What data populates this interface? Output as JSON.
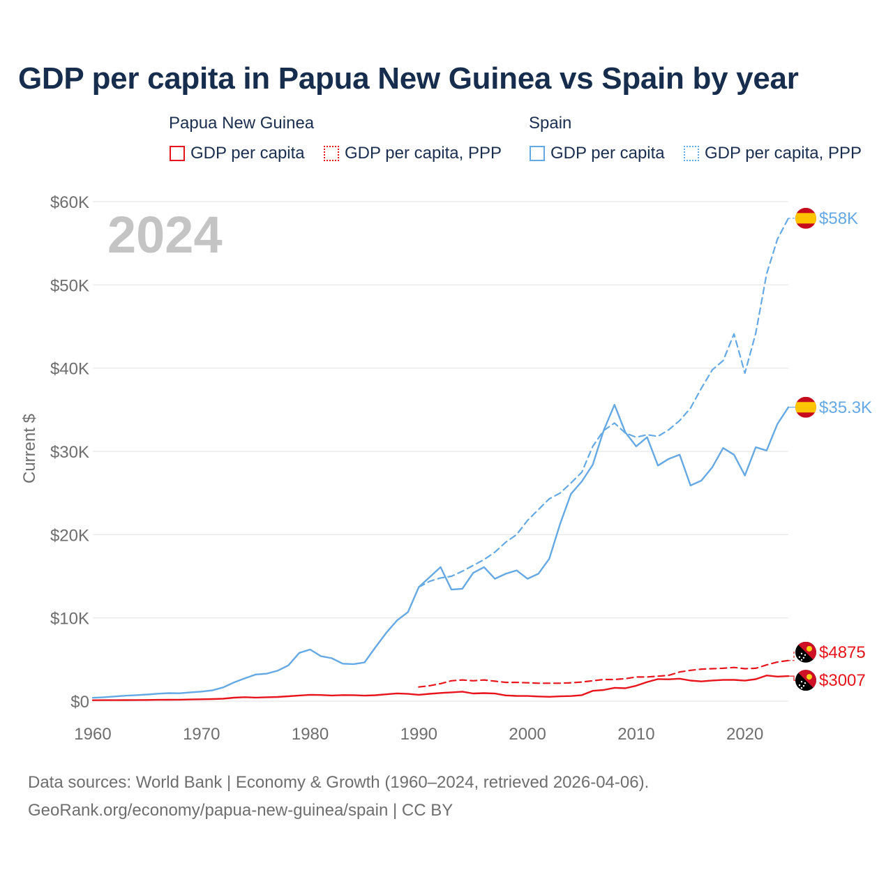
{
  "title": "GDP per capita in Papua New Guinea vs Spain by year",
  "legend": {
    "groups": [
      {
        "name": "Papua New Guinea",
        "items": [
          "GDP per capita",
          "GDP per capita, PPP"
        ]
      },
      {
        "name": "Spain",
        "items": [
          "GDP per capita",
          "GDP per capita, PPP"
        ]
      }
    ]
  },
  "year_label": "2024",
  "colors": {
    "papua_new_guinea": "#e8141c",
    "spain": "#65a9e4",
    "grid": "#e6e6e6",
    "axis_text": "#6e6e6e",
    "year_label": "#c4c4c4"
  },
  "chart_data": {
    "type": "line",
    "title": "GDP per capita in Papua New Guinea vs Spain by year",
    "xlabel": "",
    "ylabel": "Current $",
    "xlim": [
      1960,
      2024
    ],
    "ylim": [
      0,
      60000
    ],
    "x_ticks": [
      1960,
      1970,
      1980,
      1990,
      2000,
      2010,
      2020
    ],
    "y_ticks": [
      0,
      10000,
      20000,
      30000,
      40000,
      50000,
      60000
    ],
    "y_tick_labels": [
      "$0",
      "$10K",
      "$20K",
      "$30K",
      "$40K",
      "$50K",
      "$60K"
    ],
    "grid": true,
    "series": [
      {
        "name": "Spain GDP per capita",
        "country": "Spain",
        "style": "solid",
        "color": "#65a9e4",
        "x": [
          1960,
          1961,
          1962,
          1963,
          1964,
          1965,
          1966,
          1967,
          1968,
          1969,
          1970,
          1971,
          1972,
          1973,
          1974,
          1975,
          1976,
          1977,
          1978,
          1979,
          1980,
          1981,
          1982,
          1983,
          1984,
          1985,
          1986,
          1987,
          1988,
          1989,
          1990,
          1991,
          1992,
          1993,
          1994,
          1995,
          1996,
          1997,
          1998,
          1999,
          2000,
          2001,
          2002,
          2003,
          2004,
          2005,
          2006,
          2007,
          2008,
          2009,
          2010,
          2011,
          2012,
          2013,
          2014,
          2015,
          2016,
          2017,
          2018,
          2019,
          2020,
          2021,
          2022,
          2023,
          2024
        ],
        "values": [
          400,
          470,
          560,
          650,
          720,
          800,
          900,
          960,
          950,
          1060,
          1150,
          1300,
          1650,
          2250,
          2750,
          3200,
          3300,
          3650,
          4300,
          5800,
          6200,
          5400,
          5150,
          4500,
          4450,
          4650,
          6450,
          8200,
          9700,
          10700,
          13700,
          14900,
          16100,
          13400,
          13500,
          15400,
          16100,
          14700,
          15300,
          15700,
          14700,
          15300,
          17100,
          21300,
          24900,
          26400,
          28400,
          32500,
          35600,
          32300,
          30600,
          31700,
          28300,
          29100,
          29600,
          25900,
          26500,
          28100,
          30400,
          29600,
          27100,
          30500,
          30100,
          33300,
          35300
        ]
      },
      {
        "name": "Spain GDP per capita, PPP",
        "country": "Spain",
        "style": "dashed",
        "color": "#65a9e4",
        "x": [
          1990,
          1991,
          1992,
          1993,
          1994,
          1995,
          1996,
          1997,
          1998,
          1999,
          2000,
          2001,
          2002,
          2003,
          2004,
          2005,
          2006,
          2007,
          2008,
          2009,
          2010,
          2011,
          2012,
          2013,
          2014,
          2015,
          2016,
          2017,
          2018,
          2019,
          2020,
          2021,
          2022,
          2023,
          2024
        ],
        "values": [
          13700,
          14400,
          14800,
          15000,
          15600,
          16300,
          17000,
          17900,
          19100,
          20000,
          21700,
          23000,
          24300,
          25000,
          26200,
          27500,
          30600,
          32500,
          33400,
          32200,
          31700,
          32000,
          31800,
          32600,
          33700,
          35200,
          37600,
          39800,
          40900,
          44100,
          39400,
          44200,
          51300,
          55500,
          58000
        ]
      },
      {
        "name": "Papua New Guinea GDP per capita",
        "country": "Papua New Guinea",
        "style": "solid",
        "color": "#e8141c",
        "x": [
          1960,
          1961,
          1962,
          1963,
          1964,
          1965,
          1966,
          1967,
          1968,
          1969,
          1970,
          1971,
          1972,
          1973,
          1974,
          1975,
          1976,
          1977,
          1978,
          1979,
          1980,
          1981,
          1982,
          1983,
          1984,
          1985,
          1986,
          1987,
          1988,
          1989,
          1990,
          1991,
          1992,
          1993,
          1994,
          1995,
          1996,
          1997,
          1998,
          1999,
          2000,
          2001,
          2002,
          2003,
          2004,
          2005,
          2006,
          2007,
          2008,
          2009,
          2010,
          2011,
          2012,
          2013,
          2014,
          2015,
          2016,
          2017,
          2018,
          2019,
          2020,
          2021,
          2022,
          2023,
          2024
        ],
        "values": [
          110,
          115,
          120,
          125,
          135,
          145,
          160,
          170,
          180,
          200,
          230,
          250,
          290,
          420,
          480,
          430,
          470,
          500,
          590,
          680,
          760,
          740,
          680,
          730,
          720,
          660,
          710,
          820,
          930,
          870,
          760,
          880,
          980,
          1060,
          1140,
          920,
          960,
          910,
          690,
          630,
          620,
          560,
          520,
          580,
          610,
          720,
          1240,
          1340,
          1600,
          1550,
          1850,
          2300,
          2650,
          2620,
          2700,
          2470,
          2370,
          2480,
          2550,
          2560,
          2460,
          2640,
          3080,
          2950,
          3007
        ]
      },
      {
        "name": "Papua New Guinea GDP per capita, PPP",
        "country": "Papua New Guinea",
        "style": "dashed",
        "color": "#e8141c",
        "x": [
          1990,
          1991,
          1992,
          1993,
          1994,
          1995,
          1996,
          1997,
          1998,
          1999,
          2000,
          2001,
          2002,
          2003,
          2004,
          2005,
          2006,
          2007,
          2008,
          2009,
          2010,
          2011,
          2012,
          2013,
          2014,
          2015,
          2016,
          2017,
          2018,
          2019,
          2020,
          2021,
          2022,
          2023,
          2024
        ],
        "values": [
          1700,
          1850,
          2100,
          2450,
          2550,
          2450,
          2550,
          2400,
          2250,
          2250,
          2200,
          2150,
          2150,
          2150,
          2200,
          2300,
          2450,
          2600,
          2600,
          2700,
          2900,
          2900,
          3000,
          3100,
          3500,
          3700,
          3850,
          3900,
          3950,
          4050,
          3900,
          3950,
          4350,
          4700,
          4875
        ]
      }
    ],
    "end_labels": [
      {
        "series": "Spain GDP per capita, PPP",
        "text": "$58K",
        "color": "#65a9e4"
      },
      {
        "series": "Spain GDP per capita",
        "text": "$35.3K",
        "color": "#65a9e4"
      },
      {
        "series": "Papua New Guinea GDP per capita, PPP",
        "text": "$4875",
        "color": "#e8141c"
      },
      {
        "series": "Papua New Guinea GDP per capita",
        "text": "$3007",
        "color": "#e8141c"
      }
    ]
  },
  "footer": {
    "line1": "Data sources: World Bank | Economy & Growth (1960–2024, retrieved 2026-04-06).",
    "line2": "GeoRank.org/economy/papua-new-guinea/spain | CC BY"
  }
}
